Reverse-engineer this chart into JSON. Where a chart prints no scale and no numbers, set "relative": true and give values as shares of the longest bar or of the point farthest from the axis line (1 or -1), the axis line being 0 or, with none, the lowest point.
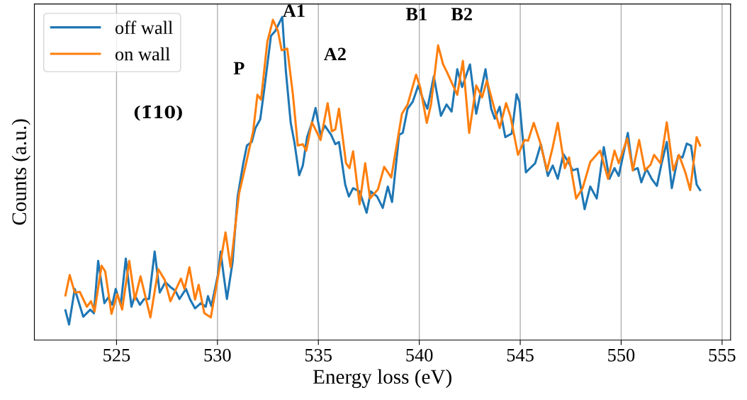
{
  "chart_data": {
    "type": "line",
    "relative": true,
    "xlabel": "Energy loss (eV)",
    "ylabel": "Counts (a.u.)",
    "xlim": [
      520.93,
      555.42
    ],
    "xticks": [
      525,
      530,
      535,
      540,
      545,
      550,
      555
    ],
    "grid": "x",
    "legend": "top left",
    "tick_labels": "x",
    "annotations": [
      "P",
      "A1",
      "A2",
      "B1",
      "B2",
      "(1̄10)"
    ],
    "series": [
      {
        "name": "off wall",
        "color": "#1f77b4",
        "x": [
          522.47,
          522.65,
          522.93,
          523.35,
          523.7,
          523.88,
          524.09,
          524.4,
          524.58,
          524.79,
          524.96,
          525.21,
          525.46,
          525.74,
          525.91,
          526.16,
          526.37,
          526.61,
          526.89,
          527.14,
          527.42,
          527.67,
          527.91,
          528.12,
          528.44,
          528.65,
          528.89,
          529.18,
          529.42,
          529.53,
          529.7,
          530.02,
          530.16,
          530.3,
          530.47,
          530.75,
          531.0,
          531.28,
          531.46,
          531.7,
          531.88,
          532.12,
          532.33,
          532.65,
          532.86,
          533.21,
          533.39,
          533.63,
          533.81,
          534.05,
          534.23,
          534.44,
          534.68,
          534.86,
          535.11,
          535.32,
          535.63,
          535.84,
          536.02,
          536.33,
          536.51,
          536.72,
          537.04,
          537.39,
          537.6,
          537.91,
          538.19,
          538.44,
          538.65,
          539.0,
          539.18,
          539.42,
          539.67,
          539.95,
          540.19,
          540.4,
          540.72,
          541.07,
          541.35,
          541.6,
          541.88,
          542.12,
          542.51,
          542.82,
          543.28,
          543.56,
          543.74,
          543.98,
          544.26,
          544.58,
          544.82,
          544.96,
          545.28,
          545.49,
          545.74,
          546.02,
          546.37,
          546.61,
          546.86,
          547.14,
          547.42,
          547.6,
          547.84,
          548.19,
          548.47,
          548.79,
          549.14,
          549.42,
          549.67,
          549.88,
          550.33,
          550.58,
          550.82,
          551.0,
          551.25,
          551.53,
          551.77,
          551.98,
          552.26,
          552.51,
          552.82,
          553.04,
          553.25,
          553.46,
          553.74,
          553.91
        ],
        "values": [
          0.092,
          0.048,
          0.158,
          0.072,
          0.094,
          0.083,
          0.245,
          0.114,
          0.131,
          0.109,
          0.158,
          0.109,
          0.252,
          0.103,
          0.138,
          0.109,
          0.127,
          0.127,
          0.274,
          0.147,
          0.179,
          0.164,
          0.153,
          0.127,
          0.158,
          0.125,
          0.098,
          0.114,
          0.103,
          0.136,
          0.105,
          0.201,
          0.274,
          0.204,
          0.127,
          0.241,
          0.444,
          0.547,
          0.602,
          0.613,
          0.656,
          0.683,
          0.781,
          0.941,
          0.956,
          1.0,
          0.832,
          0.672,
          0.613,
          0.51,
          0.54,
          0.628,
          0.672,
          0.718,
          0.635,
          0.663,
          0.635,
          0.606,
          0.613,
          0.481,
          0.444,
          0.47,
          0.46,
          0.394,
          0.46,
          0.444,
          0.409,
          0.475,
          0.427,
          0.635,
          0.641,
          0.716,
          0.737,
          0.788,
          0.744,
          0.716,
          0.816,
          0.694,
          0.729,
          0.707,
          0.838,
          0.783,
          0.853,
          0.7,
          0.838,
          0.716,
          0.685,
          0.722,
          0.628,
          0.639,
          0.761,
          0.737,
          0.519,
          0.532,
          0.547,
          0.606,
          0.508,
          0.54,
          0.499,
          0.575,
          0.547,
          0.525,
          0.53,
          0.405,
          0.475,
          0.438,
          0.597,
          0.499,
          0.532,
          0.508,
          0.641,
          0.525,
          0.532,
          0.488,
          0.53,
          0.497,
          0.477,
          0.54,
          0.613,
          0.47,
          0.569,
          0.565,
          0.608,
          0.602,
          0.481,
          0.464
        ]
      },
      {
        "name": "on wall",
        "color": "#ff7f0e",
        "x": [
          522.47,
          522.68,
          522.93,
          523.18,
          523.53,
          523.74,
          523.91,
          524.26,
          524.44,
          524.75,
          525.04,
          525.28,
          525.63,
          525.91,
          526.19,
          526.68,
          527.07,
          527.39,
          527.67,
          528.19,
          528.37,
          528.61,
          528.89,
          529.07,
          529.35,
          529.67,
          530.02,
          530.4,
          530.65,
          531.07,
          531.42,
          531.77,
          531.98,
          532.16,
          532.47,
          532.75,
          533.0,
          533.18,
          533.46,
          533.74,
          533.98,
          534.23,
          534.4,
          534.68,
          535.11,
          535.46,
          535.67,
          535.84,
          536.02,
          536.37,
          536.54,
          536.72,
          537.04,
          537.32,
          537.56,
          537.95,
          538.26,
          538.61,
          539.14,
          539.42,
          539.84,
          540.05,
          540.37,
          540.58,
          540.93,
          541.18,
          541.35,
          541.88,
          542.16,
          542.47,
          542.82,
          543.11,
          543.35,
          543.63,
          543.98,
          544.3,
          544.51,
          544.89,
          545.21,
          545.39,
          545.67,
          545.98,
          546.33,
          546.61,
          546.86,
          547.21,
          547.42,
          547.77,
          548.09,
          548.47,
          548.96,
          549.35,
          549.67,
          549.88,
          550.3,
          550.58,
          550.89,
          551.18,
          551.46,
          551.63,
          551.95,
          552.26,
          552.58,
          552.86,
          553.18,
          553.42,
          553.74,
          553.91
        ],
        "values": [
          0.138,
          0.201,
          0.147,
          0.149,
          0.103,
          0.12,
          0.088,
          0.23,
          0.212,
          0.081,
          0.142,
          0.094,
          0.245,
          0.125,
          0.197,
          0.07,
          0.219,
          0.186,
          0.12,
          0.19,
          0.158,
          0.225,
          0.125,
          0.171,
          0.083,
          0.07,
          0.193,
          0.333,
          0.225,
          0.453,
          0.547,
          0.646,
          0.759,
          0.744,
          0.923,
          0.991,
          0.956,
          0.897,
          0.902,
          0.759,
          0.602,
          0.606,
          0.586,
          0.674,
          0.619,
          0.733,
          0.646,
          0.652,
          0.716,
          0.547,
          0.532,
          0.584,
          0.42,
          0.547,
          0.438,
          0.466,
          0.536,
          0.503,
          0.7,
          0.729,
          0.821,
          0.781,
          0.672,
          0.729,
          0.912,
          0.853,
          0.832,
          0.759,
          0.864,
          0.641,
          0.788,
          0.751,
          0.803,
          0.737,
          0.656,
          0.733,
          0.694,
          0.573,
          0.619,
          0.617,
          0.672,
          0.613,
          0.525,
          0.597,
          0.672,
          0.532,
          0.565,
          0.438,
          0.47,
          0.551,
          0.586,
          0.499,
          0.586,
          0.547,
          0.624,
          0.525,
          0.619,
          0.525,
          0.543,
          0.573,
          0.547,
          0.674,
          0.525,
          0.573,
          0.519,
          0.464,
          0.628,
          0.602
        ]
      }
    ]
  }
}
